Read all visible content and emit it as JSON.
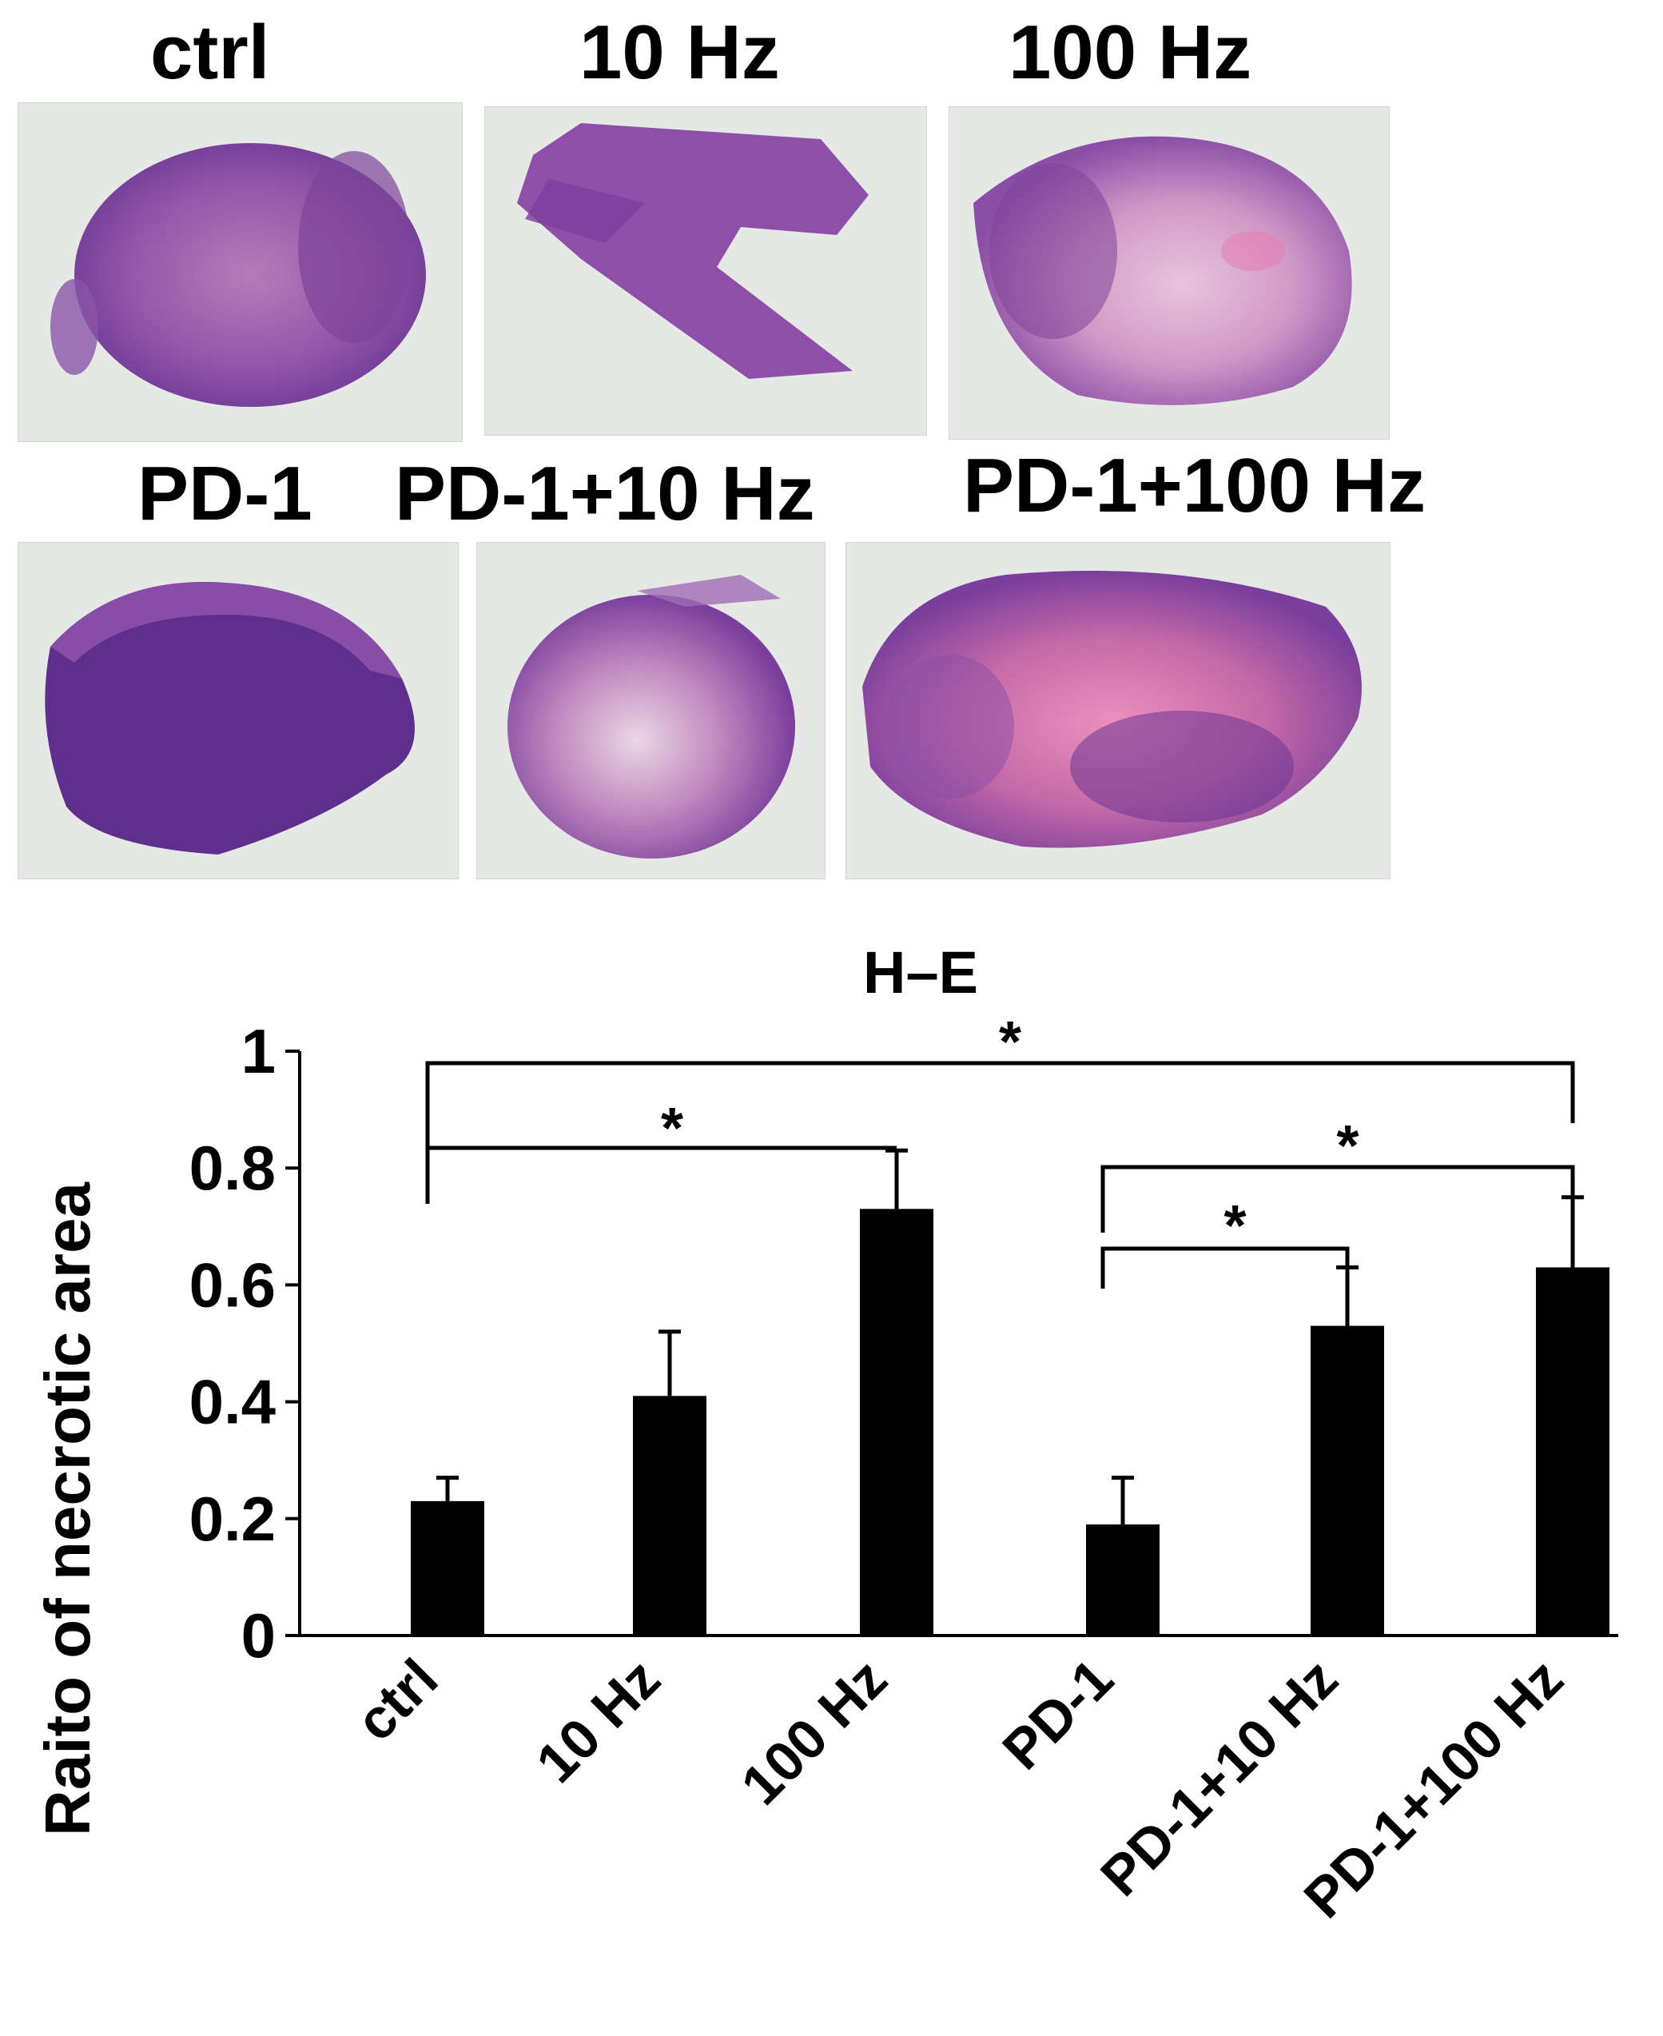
{
  "figure": {
    "panel_labels": {
      "ctrl": "ctrl",
      "hz10": "10 Hz",
      "hz100": "100 Hz",
      "pd1": "PD-1",
      "pd1_10": "PD-1+10 Hz",
      "pd1_100": "PD-1+100 Hz"
    },
    "colors": {
      "background": "#ffffff",
      "slide": "#e6e8e6",
      "tissue_dark": "#5e2f8c",
      "tissue_mid": "#8e4fa8",
      "tissue_light": "#cf9ac8",
      "necrotic_pink": "#e57fb0",
      "bar": "#000000"
    }
  },
  "chart_data": {
    "type": "bar",
    "title": "H–E",
    "ylabel": "Raito of necrotic area",
    "xlabel": "",
    "categories": [
      "ctrl",
      "10 Hz",
      "100 Hz",
      "PD-1",
      "PD-1+10 Hz",
      "PD-1+100 Hz"
    ],
    "values": [
      0.23,
      0.41,
      0.73,
      0.19,
      0.53,
      0.63
    ],
    "errors": [
      0.04,
      0.11,
      0.1,
      0.08,
      0.1,
      0.12
    ],
    "ylim": [
      0,
      1
    ],
    "yticks": [
      0,
      0.2,
      0.4,
      0.6,
      0.8,
      1
    ],
    "ytick_labels": [
      "0",
      "0.2",
      "0.4",
      "0.6",
      "0.8",
      "1"
    ],
    "grid": false,
    "legend": "none",
    "significance": [
      {
        "from": "ctrl",
        "to": "100 Hz",
        "label": "*"
      },
      {
        "from": "ctrl",
        "to": "PD-1+100 Hz",
        "label": "*"
      },
      {
        "from": "PD-1",
        "to": "PD-1+10 Hz",
        "label": "*"
      },
      {
        "from": "PD-1",
        "to": "PD-1+100 Hz",
        "label": "*"
      }
    ]
  }
}
